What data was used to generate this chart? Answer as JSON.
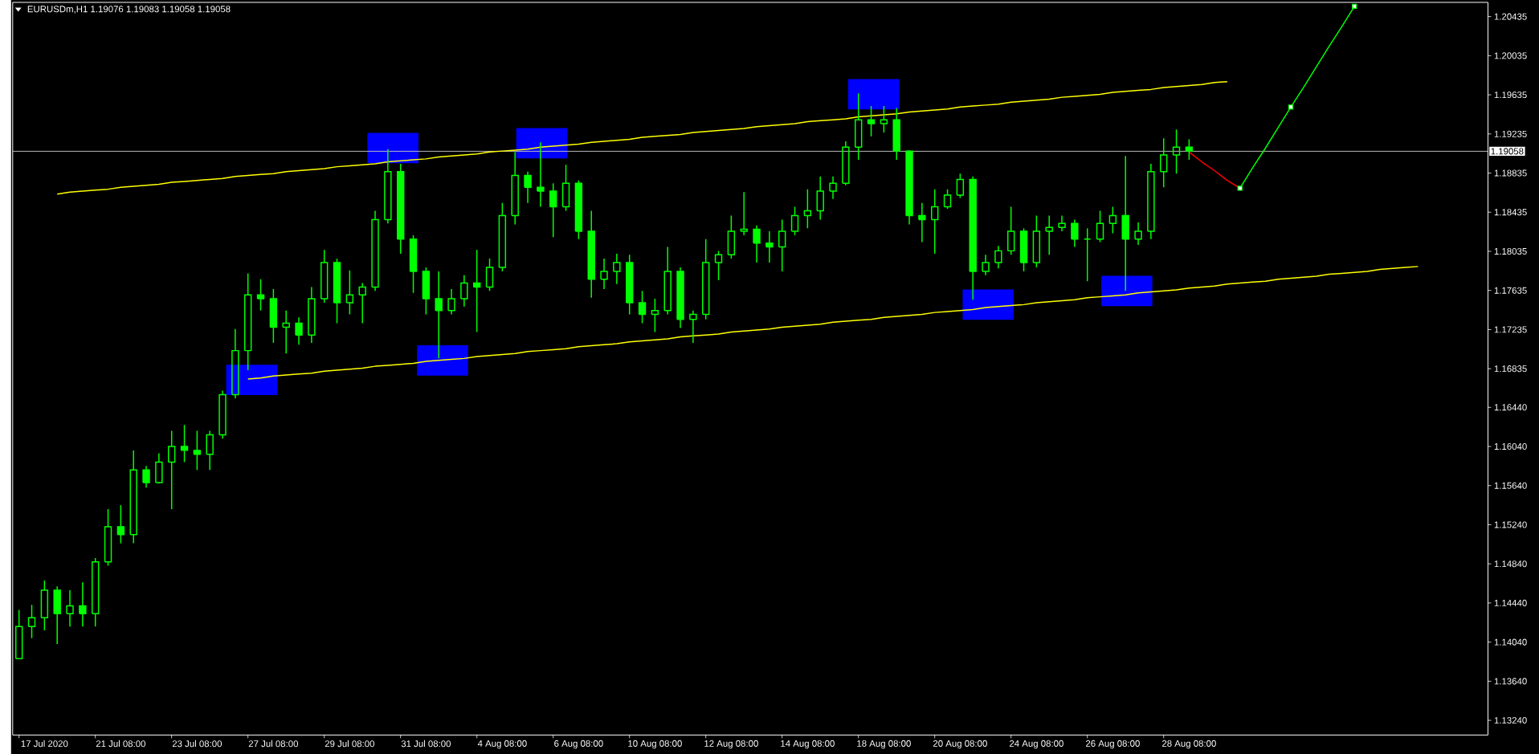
{
  "chart_data": {
    "type": "candlestick",
    "title": "EURUSDm,H1  1.19076 1.19083 1.19058 1.19058",
    "color": "#00ff00",
    "categories": [
      null,
      null,
      "17 Jul 2020",
      null,
      null,
      null,
      null,
      null,
      "21 Jul 08:00",
      null,
      null,
      null,
      null,
      null,
      "23 Jul 08:00",
      null,
      null,
      null,
      null,
      null,
      "27 Jul 08:00",
      null,
      null,
      null,
      null,
      null,
      "29 Jul 08:00",
      null,
      null,
      null,
      null,
      null,
      "31 Jul 08:00",
      null,
      null,
      null,
      null,
      null,
      "4 Aug 08:00",
      null,
      null,
      null,
      null,
      null,
      "6 Aug 08:00",
      null,
      null,
      null,
      null,
      null,
      "10 Aug 08:00",
      null,
      null,
      null,
      null,
      null,
      "12 Aug 08:00",
      null,
      null,
      null,
      null,
      null,
      "14 Aug 08:00",
      null,
      null,
      null,
      null,
      null,
      "18 Aug 08:00",
      null,
      null,
      null,
      null,
      null,
      "20 Aug 08:00",
      null,
      null,
      null,
      null,
      null,
      "24 Aug 08:00",
      null,
      null,
      null,
      null,
      null,
      "26 Aug 08:00",
      null,
      null,
      null,
      null,
      null,
      "28 Aug 08:00",
      null,
      null,
      null,
      null,
      null,
      null,
      null,
      null,
      null,
      null,
      null,
      null,
      null,
      null,
      null,
      null,
      null,
      null,
      null,
      null,
      null,
      null,
      null
    ],
    "ohlc": [
      [
        1.1387,
        1.1437,
        1.1387,
        1.142
      ],
      [
        1.142,
        1.1442,
        1.1408,
        1.1429
      ],
      [
        1.1429,
        1.1467,
        1.1416,
        1.1457
      ],
      [
        1.1457,
        1.1461,
        1.1402,
        1.1433
      ],
      [
        1.1433,
        1.1457,
        1.142,
        1.1441
      ],
      [
        1.1441,
        1.1465,
        1.142,
        1.1433
      ],
      [
        1.1433,
        1.149,
        1.142,
        1.1486
      ],
      [
        1.1486,
        1.154,
        1.1482,
        1.1522
      ],
      [
        1.1522,
        1.1544,
        1.1505,
        1.1514
      ],
      [
        1.1514,
        1.16,
        1.1505,
        1.158
      ],
      [
        1.158,
        1.1584,
        1.1562,
        1.1567
      ],
      [
        1.1567,
        1.1597,
        1.1566,
        1.1588
      ],
      [
        1.1588,
        1.162,
        1.154,
        1.1604
      ],
      [
        1.1604,
        1.1626,
        1.1588,
        1.16
      ],
      [
        1.16,
        1.162,
        1.158,
        1.1596
      ],
      [
        1.1596,
        1.162,
        1.158,
        1.1616
      ],
      [
        1.1616,
        1.1661,
        1.1612,
        1.1657
      ],
      [
        1.1657,
        1.1724,
        1.1653,
        1.1702
      ],
      [
        1.1702,
        1.1781,
        1.1682,
        1.1759
      ],
      [
        1.1759,
        1.1775,
        1.1743,
        1.1755
      ],
      [
        1.1755,
        1.1765,
        1.171,
        1.1726
      ],
      [
        1.1726,
        1.1743,
        1.1699,
        1.173
      ],
      [
        1.173,
        1.1736,
        1.1708,
        1.1718
      ],
      [
        1.1718,
        1.1767,
        1.171,
        1.1755
      ],
      [
        1.1755,
        1.1805,
        1.1751,
        1.1792
      ],
      [
        1.1792,
        1.1796,
        1.173,
        1.1751
      ],
      [
        1.1751,
        1.1784,
        1.1739,
        1.1759
      ],
      [
        1.1759,
        1.1771,
        1.173,
        1.1767
      ],
      [
        1.1767,
        1.1845,
        1.1763,
        1.1836
      ],
      [
        1.1836,
        1.1908,
        1.1832,
        1.1885
      ],
      [
        1.1885,
        1.1893,
        1.1801,
        1.1816
      ],
      [
        1.1816,
        1.182,
        1.1761,
        1.1783
      ],
      [
        1.1783,
        1.1787,
        1.1739,
        1.1755
      ],
      [
        1.1755,
        1.1783,
        1.1694,
        1.1743
      ],
      [
        1.1743,
        1.1765,
        1.1739,
        1.1755
      ],
      [
        1.1755,
        1.1779,
        1.1747,
        1.1771
      ],
      [
        1.1771,
        1.1805,
        1.1721,
        1.1767
      ],
      [
        1.1767,
        1.1796,
        1.1763,
        1.1787
      ],
      [
        1.1787,
        1.1853,
        1.1783,
        1.184
      ],
      [
        1.184,
        1.1905,
        1.1831,
        1.1881
      ],
      [
        1.1881,
        1.1885,
        1.1853,
        1.1869
      ],
      [
        1.1869,
        1.1915,
        1.1849,
        1.1865
      ],
      [
        1.1865,
        1.1873,
        1.1818,
        1.1849
      ],
      [
        1.1849,
        1.1892,
        1.1845,
        1.1873
      ],
      [
        1.1873,
        1.1876,
        1.1816,
        1.1824
      ],
      [
        1.1824,
        1.1845,
        1.1756,
        1.1775
      ],
      [
        1.1775,
        1.1796,
        1.1765,
        1.1783
      ],
      [
        1.1783,
        1.1801,
        1.177,
        1.1792
      ],
      [
        1.1792,
        1.18,
        1.1739,
        1.1751
      ],
      [
        1.1751,
        1.1763,
        1.173,
        1.1739
      ],
      [
        1.1739,
        1.1755,
        1.1721,
        1.1743
      ],
      [
        1.1743,
        1.1808,
        1.1739,
        1.1783
      ],
      [
        1.1783,
        1.1787,
        1.1725,
        1.1734
      ],
      [
        1.1734,
        1.1743,
        1.171,
        1.1739
      ],
      [
        1.1739,
        1.1816,
        1.1734,
        1.1792
      ],
      [
        1.1792,
        1.1804,
        1.1774,
        1.18
      ],
      [
        1.18,
        1.184,
        1.1796,
        1.1824
      ],
      [
        1.1824,
        1.1864,
        1.182,
        1.1826
      ],
      [
        1.1826,
        1.183,
        1.1792,
        1.1812
      ],
      [
        1.1812,
        1.1824,
        1.1792,
        1.1808
      ],
      [
        1.1808,
        1.1836,
        1.1783,
        1.1824
      ],
      [
        1.1824,
        1.1849,
        1.182,
        1.184
      ],
      [
        1.184,
        1.1867,
        1.1827,
        1.1845
      ],
      [
        1.1845,
        1.188,
        1.1836,
        1.1865
      ],
      [
        1.1865,
        1.188,
        1.1857,
        1.1873
      ],
      [
        1.1873,
        1.1916,
        1.1871,
        1.191
      ],
      [
        1.191,
        1.1965,
        1.1897,
        1.1938
      ],
      [
        1.1938,
        1.1952,
        1.1921,
        1.1934
      ],
      [
        1.1934,
        1.1952,
        1.1925,
        1.1938
      ],
      [
        1.1938,
        1.195,
        1.1897,
        1.1906
      ],
      [
        1.1906,
        1.1907,
        1.1831,
        1.184
      ],
      [
        1.184,
        1.1853,
        1.1813,
        1.1836
      ],
      [
        1.1836,
        1.1867,
        1.1801,
        1.1849
      ],
      [
        1.1849,
        1.1867,
        1.1847,
        1.1861
      ],
      [
        1.1861,
        1.1883,
        1.1858,
        1.1877
      ],
      [
        1.1877,
        1.188,
        1.1754,
        1.1783
      ],
      [
        1.1783,
        1.18,
        1.1779,
        1.1792
      ],
      [
        1.1792,
        1.1809,
        1.1786,
        1.1804
      ],
      [
        1.1804,
        1.1849,
        1.18,
        1.1824
      ],
      [
        1.1824,
        1.1827,
        1.1783,
        1.1792
      ],
      [
        1.1792,
        1.184,
        1.1787,
        1.1824
      ],
      [
        1.1824,
        1.184,
        1.18,
        1.1828
      ],
      [
        1.1828,
        1.184,
        1.1824,
        1.1832
      ],
      [
        1.1832,
        1.1836,
        1.1808,
        1.1816
      ],
      [
        1.1816,
        1.1827,
        1.1773,
        1.1816
      ],
      [
        1.1816,
        1.1845,
        1.1813,
        1.1832
      ],
      [
        1.1832,
        1.1849,
        1.1822,
        1.184
      ],
      [
        1.184,
        1.1901,
        1.1763,
        1.1816
      ],
      [
        1.1816,
        1.1833,
        1.181,
        1.1824
      ],
      [
        1.1824,
        1.1893,
        1.1816,
        1.1885
      ],
      [
        1.1885,
        1.1919,
        1.1869,
        1.1902
      ],
      [
        1.1902,
        1.1928,
        1.1883,
        1.191
      ],
      [
        1.191,
        1.1918,
        1.1897,
        1.1906
      ],
      null,
      null,
      null,
      null,
      null,
      null,
      null,
      null,
      null,
      null,
      null,
      null,
      null,
      null,
      null,
      null,
      null,
      null,
      null,
      null,
      null,
      null,
      null
    ],
    "series": [
      {
        "type": "line",
        "color": "#ffff00",
        "values": [
          null,
          null,
          null,
          1.1862,
          1.1864,
          1.1865,
          1.1866,
          1.1867,
          1.1869,
          1.187,
          1.1871,
          1.1872,
          1.1874,
          1.1875,
          1.1876,
          1.1877,
          1.1878,
          1.188,
          1.1881,
          1.1882,
          1.1883,
          1.1885,
          1.1886,
          1.1887,
          1.1888,
          1.189,
          1.1891,
          1.1892,
          1.1893,
          1.1895,
          1.1896,
          1.1897,
          1.1898,
          1.19,
          1.1901,
          1.1902,
          1.1903,
          1.1905,
          1.1906,
          1.1907,
          1.1908,
          1.191,
          1.1911,
          1.1912,
          1.1913,
          1.1915,
          1.1916,
          1.1917,
          1.1918,
          1.192,
          1.1921,
          1.1922,
          1.1923,
          1.1925,
          1.1926,
          1.1927,
          1.1928,
          1.1929,
          1.1931,
          1.1932,
          1.1933,
          1.1934,
          1.1936,
          1.1937,
          1.1938,
          1.1939,
          1.1941,
          1.1942,
          1.1943,
          1.1944,
          1.1946,
          1.1947,
          1.1948,
          1.1949,
          1.1951,
          1.1952,
          1.1953,
          1.1954,
          1.1956,
          1.1957,
          1.1958,
          1.1959,
          1.1961,
          1.1962,
          1.1963,
          1.1964,
          1.1966,
          1.1967,
          1.1968,
          1.1969,
          1.1971,
          1.1972,
          1.1973,
          1.1974,
          1.1976,
          1.1977,
          null,
          null,
          null,
          null,
          null,
          null,
          null,
          null,
          null,
          null,
          null,
          null,
          null,
          null,
          null,
          null,
          null,
          null,
          null,
          null
        ]
      },
      {
        "type": "line",
        "color": "#ffff00",
        "values": [
          null,
          null,
          null,
          null,
          null,
          null,
          null,
          null,
          null,
          null,
          null,
          null,
          null,
          null,
          null,
          null,
          null,
          null,
          1.1673,
          1.1674,
          1.1676,
          1.1677,
          1.1678,
          1.1679,
          1.1681,
          1.1682,
          1.1683,
          1.1684,
          1.1686,
          1.1687,
          1.1688,
          1.1689,
          1.1691,
          1.1692,
          1.1693,
          1.1694,
          1.1696,
          1.1697,
          1.1698,
          1.1699,
          1.1701,
          1.1702,
          1.1703,
          1.1704,
          1.1706,
          1.1707,
          1.1708,
          1.1709,
          1.1711,
          1.1712,
          1.1713,
          1.1714,
          1.1716,
          1.1717,
          1.1718,
          1.1719,
          1.1721,
          1.1722,
          1.1723,
          1.1724,
          1.1726,
          1.1727,
          1.1728,
          1.1729,
          1.1731,
          1.1732,
          1.1733,
          1.1734,
          1.1736,
          1.1737,
          1.1738,
          1.1739,
          1.1741,
          1.1742,
          1.1743,
          1.1744,
          1.1746,
          1.1747,
          1.1748,
          1.1749,
          1.1751,
          1.1752,
          1.1753,
          1.1754,
          1.1756,
          1.1757,
          1.1758,
          1.1759,
          1.1761,
          1.1762,
          1.1763,
          1.1764,
          1.1766,
          1.1767,
          1.1768,
          1.177,
          1.1771,
          1.1772,
          1.1773,
          1.1775,
          1.1776,
          1.1777,
          1.1778,
          1.178,
          1.1781,
          1.1782,
          1.1783,
          1.1785,
          1.1786,
          1.1787,
          1.1788,
          null,
          null,
          null,
          null,
          null
        ]
      },
      {
        "type": "line",
        "color": "#ff0000",
        "values": [
          null,
          null,
          null,
          null,
          null,
          null,
          null,
          null,
          null,
          null,
          null,
          null,
          null,
          null,
          null,
          null,
          null,
          null,
          null,
          null,
          null,
          null,
          null,
          null,
          null,
          null,
          null,
          null,
          null,
          null,
          null,
          null,
          null,
          null,
          null,
          null,
          null,
          null,
          null,
          null,
          null,
          null,
          null,
          null,
          null,
          null,
          null,
          null,
          null,
          null,
          null,
          null,
          null,
          null,
          null,
          null,
          null,
          null,
          null,
          null,
          null,
          null,
          null,
          null,
          null,
          null,
          null,
          null,
          null,
          null,
          null,
          null,
          null,
          null,
          null,
          null,
          null,
          null,
          null,
          null,
          null,
          null,
          null,
          null,
          null,
          null,
          null,
          null,
          null,
          null,
          null,
          null,
          1.1905,
          1.1895,
          1.1886,
          1.1876,
          1.1868,
          null,
          null,
          null,
          null,
          null,
          null,
          null,
          null,
          null,
          null,
          null,
          null,
          null,
          null,
          null,
          null,
          null,
          null,
          null
        ]
      },
      {
        "type": "line",
        "color": "#00ff00",
        "values": [
          null,
          null,
          null,
          null,
          null,
          null,
          null,
          null,
          null,
          null,
          null,
          null,
          null,
          null,
          null,
          null,
          null,
          null,
          null,
          null,
          null,
          null,
          null,
          null,
          null,
          null,
          null,
          null,
          null,
          null,
          null,
          null,
          null,
          null,
          null,
          null,
          null,
          null,
          null,
          null,
          null,
          null,
          null,
          null,
          null,
          null,
          null,
          null,
          null,
          null,
          null,
          null,
          null,
          null,
          null,
          null,
          null,
          null,
          null,
          null,
          null,
          null,
          null,
          null,
          null,
          null,
          null,
          null,
          null,
          null,
          null,
          null,
          null,
          null,
          null,
          null,
          null,
          null,
          null,
          null,
          null,
          null,
          null,
          null,
          null,
          null,
          null,
          null,
          null,
          null,
          null,
          null,
          null,
          null,
          null,
          null,
          1.1868,
          1.1889,
          1.1909,
          1.193,
          1.1951,
          1.1971,
          1.1992,
          1.2013,
          1.2033,
          1.2054,
          null,
          null,
          null,
          null,
          null,
          null,
          null,
          null,
          null,
          null
        ]
      },
      {
        "type": "scatter",
        "color": "#00ff00",
        "marker": "square",
        "values": [
          null,
          null,
          null,
          null,
          null,
          null,
          null,
          null,
          null,
          null,
          null,
          null,
          null,
          null,
          null,
          null,
          null,
          null,
          null,
          null,
          null,
          null,
          null,
          null,
          null,
          null,
          null,
          null,
          null,
          null,
          null,
          null,
          null,
          null,
          null,
          null,
          null,
          null,
          null,
          null,
          null,
          null,
          null,
          null,
          null,
          null,
          null,
          null,
          null,
          null,
          null,
          null,
          null,
          null,
          null,
          null,
          null,
          null,
          null,
          null,
          null,
          null,
          null,
          null,
          null,
          null,
          null,
          null,
          null,
          null,
          null,
          null,
          null,
          null,
          null,
          null,
          null,
          null,
          null,
          null,
          null,
          null,
          null,
          null,
          null,
          null,
          null,
          null,
          null,
          null,
          null,
          null,
          null,
          null,
          null,
          null,
          1.1868,
          null,
          null,
          null,
          1.1951,
          null,
          null,
          null,
          null,
          1.2054,
          null,
          null,
          null,
          null,
          null,
          null,
          null,
          null,
          null,
          null
        ]
      }
    ],
    "ylim": [
      1.1309,
      1.2058
    ],
    "yticks": [
      {
        "value": 1.1324,
        "label": "1.13240"
      },
      {
        "value": 1.1364,
        "label": "1.13640"
      },
      {
        "value": 1.1404,
        "label": "1.14040"
      },
      {
        "value": 1.1444,
        "label": "1.14440"
      },
      {
        "value": 1.1484,
        "label": "1.14840"
      },
      {
        "value": 1.1524,
        "label": "1.15240"
      },
      {
        "value": 1.1564,
        "label": "1.15640"
      },
      {
        "value": 1.1604,
        "label": "1.16040"
      },
      {
        "value": 1.1644,
        "label": "1.16440"
      },
      1.16835,
      1.17235,
      1.17635,
      1.18035,
      1.18435,
      1.18835,
      1.19235,
      1.19635,
      1.20035,
      1.20435
    ],
    "ref_lines": [
      {
        "axis": "y",
        "value": 1.19058,
        "label": "1.19058",
        "color": "#c0c0c0"
      }
    ]
  }
}
